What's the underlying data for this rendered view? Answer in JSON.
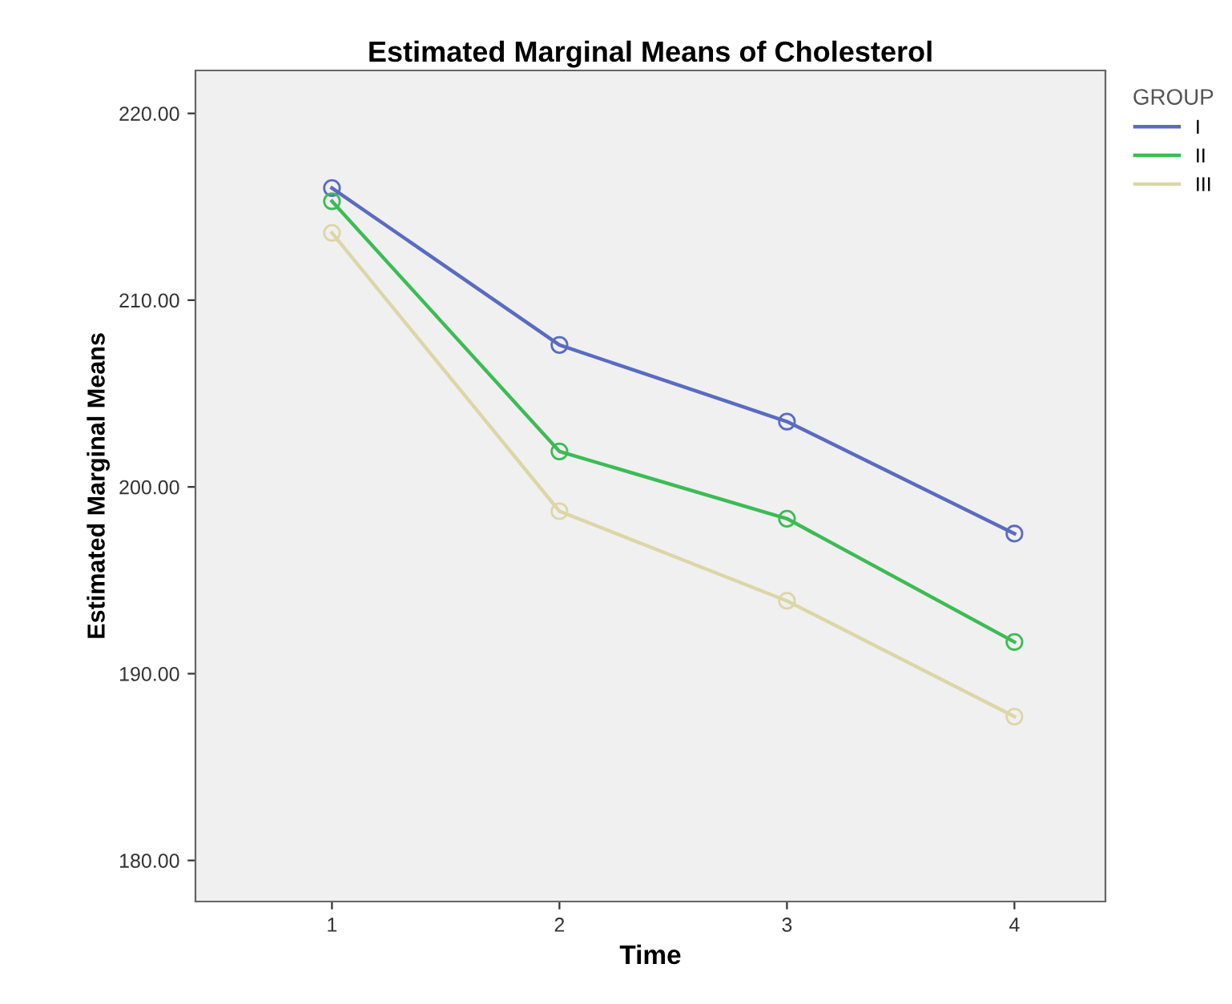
{
  "chart_data": {
    "type": "line",
    "title": "Estimated Marginal Means of Cholesterol",
    "xlabel": "Time",
    "ylabel": "Estimated Marginal Means",
    "legend_title": "GROUP",
    "categories": [
      "1",
      "2",
      "3",
      "4"
    ],
    "series": [
      {
        "name": "I",
        "color": "#5a6bc0",
        "values": [
          216.0,
          207.6,
          203.5,
          197.5
        ]
      },
      {
        "name": "II",
        "color": "#3dbb55",
        "values": [
          215.3,
          201.9,
          198.3,
          191.7
        ]
      },
      {
        "name": "III",
        "color": "#dcd6a8",
        "values": [
          213.6,
          198.7,
          193.9,
          187.7
        ]
      }
    ],
    "ylim": [
      177.8,
      222.3
    ],
    "yticks": [
      {
        "value": 180,
        "label": "180.00"
      },
      {
        "value": 190,
        "label": "190.00"
      },
      {
        "value": 200,
        "label": "200.00"
      },
      {
        "value": 210,
        "label": "210.00"
      },
      {
        "value": 220,
        "label": "220.00"
      }
    ],
    "grid": false,
    "legend": "top right",
    "marker": "circle",
    "line_style": "solid"
  }
}
